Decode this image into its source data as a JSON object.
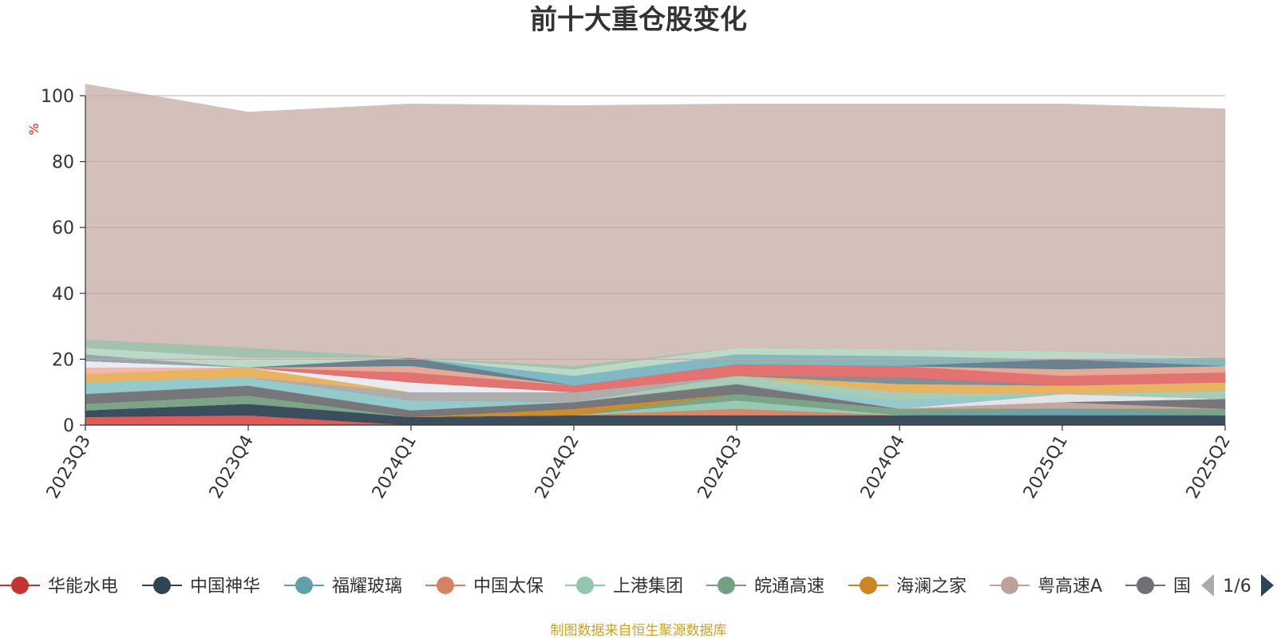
{
  "chart_data": {
    "type": "area",
    "stacked": true,
    "title": "前十大重仓股变化",
    "ylabel": "%",
    "ylim": [
      0,
      100
    ],
    "yticks": [
      0,
      20,
      40,
      60,
      80,
      100
    ],
    "categories": [
      "2023Q3",
      "2023Q4",
      "2024Q1",
      "2024Q2",
      "2024Q3",
      "2024Q4",
      "2025Q1",
      "2025Q2"
    ],
    "series": [
      {
        "name": "华能水电",
        "color": "#d9534f",
        "values": [
          2.5,
          3.0,
          0.0,
          0.0,
          0.0,
          0.0,
          0.0,
          0.0
        ]
      },
      {
        "name": "中国神华",
        "color": "#2f4554",
        "values": [
          2.0,
          3.5,
          2.5,
          3.0,
          3.0,
          3.0,
          3.0,
          3.0
        ]
      },
      {
        "name": "福耀玻璃",
        "color": "#61a0a8",
        "values": [
          0.0,
          0.0,
          0.0,
          0.0,
          0.0,
          0.0,
          2.0,
          0.0
        ]
      },
      {
        "name": "中国太保",
        "color": "#d48265",
        "values": [
          0.0,
          0.0,
          0.0,
          0.0,
          2.0,
          0.0,
          0.0,
          0.0
        ]
      },
      {
        "name": "上港集团",
        "color": "#91c7ae",
        "values": [
          0.0,
          0.0,
          0.0,
          0.0,
          2.5,
          0.0,
          0.0,
          0.0
        ]
      },
      {
        "name": "皖通高速",
        "color": "#749f83",
        "values": [
          2.0,
          2.5,
          0.0,
          0.0,
          2.0,
          2.0,
          0.0,
          2.0
        ]
      },
      {
        "name": "海澜之家",
        "color": "#ca8622",
        "values": [
          0.0,
          0.0,
          0.0,
          2.0,
          0.0,
          0.0,
          0.0,
          0.0
        ]
      },
      {
        "name": "粤高速A",
        "color": "#bda29a",
        "values": [
          0.0,
          0.0,
          0.0,
          0.0,
          0.0,
          0.0,
          2.0,
          0.0
        ]
      },
      {
        "name": "国",
        "color": "#6e7074",
        "values": [
          3.0,
          3.0,
          2.0,
          2.0,
          3.0,
          0.0,
          0.0,
          3.0
        ]
      },
      {
        "name": "",
        "color": "#e0e3e6",
        "values": [
          0.0,
          0.0,
          0.0,
          0.0,
          0.0,
          0.0,
          2.5,
          0.0
        ]
      },
      {
        "name": "",
        "color": "#d9534f",
        "values": [
          0.0,
          0.0,
          0.0,
          0.0,
          0.0,
          0.0,
          0.0,
          0.0
        ]
      },
      {
        "name": "",
        "color": "#8fc7c9",
        "values": [
          3.5,
          2.5,
          3.0,
          0.0,
          0.0,
          2.5,
          0.0,
          0.0
        ]
      },
      {
        "name": "",
        "color": "#a3c9b2",
        "values": [
          0.0,
          0.0,
          0.0,
          0.0,
          2.5,
          2.5,
          0.0,
          2.5
        ]
      },
      {
        "name": "",
        "color": "#a9a9a9",
        "values": [
          0.0,
          0.0,
          2.5,
          3.0,
          0.0,
          0.0,
          0.0,
          0.0
        ]
      },
      {
        "name": "",
        "color": "#e8b05a",
        "values": [
          2.5,
          3.0,
          0.0,
          0.0,
          0.0,
          2.5,
          2.5,
          2.5
        ]
      },
      {
        "name": "",
        "color": "#f0b4a8",
        "values": [
          2.0,
          0.0,
          0.0,
          0.0,
          0.0,
          0.0,
          0.0,
          0.0
        ]
      },
      {
        "name": "",
        "color": "#e9e9ef",
        "values": [
          2.0,
          0.0,
          3.0,
          0.0,
          0.0,
          0.0,
          0.0,
          0.0
        ]
      },
      {
        "name": "",
        "color": "#7d8a93",
        "values": [
          0.0,
          0.0,
          0.0,
          0.0,
          0.0,
          2.0,
          0.0,
          0.0
        ]
      },
      {
        "name": "",
        "color": "#e06b68",
        "values": [
          0.0,
          0.0,
          3.0,
          2.0,
          3.5,
          3.5,
          3.0,
          3.0
        ]
      },
      {
        "name": "",
        "color": "#8fa3ad",
        "values": [
          2.0,
          0.0,
          0.0,
          0.0,
          0.0,
          0.0,
          0.0,
          0.0
        ]
      },
      {
        "name": "",
        "color": "#e6a593",
        "values": [
          0.0,
          0.0,
          2.0,
          0.0,
          0.0,
          0.0,
          2.0,
          2.0
        ]
      },
      {
        "name": "",
        "color": "#607b8a",
        "values": [
          0.0,
          0.0,
          2.5,
          0.0,
          0.0,
          0.0,
          3.0,
          0.0
        ]
      },
      {
        "name": "",
        "color": "#79b5c0",
        "values": [
          0.0,
          0.0,
          0.0,
          3.0,
          3.0,
          3.0,
          0.0,
          2.5
        ]
      },
      {
        "name": "",
        "color": "#b7d7c4",
        "values": [
          2.0,
          3.0,
          0.0,
          2.0,
          2.0,
          2.0,
          2.5,
          0.0
        ]
      },
      {
        "name": "",
        "color": "#9ebfa9",
        "values": [
          2.5,
          3.0,
          0.0,
          1.0,
          0.0,
          0.0,
          0.0,
          0.0
        ]
      },
      {
        "name": "",
        "color": "#d1bdb7",
        "values": [
          77.5,
          71.5,
          77.0,
          79.0,
          74.0,
          74.5,
          75.0,
          75.5
        ]
      }
    ]
  },
  "legend": {
    "items": [
      {
        "name": "华能水电",
        "color": "#c23531"
      },
      {
        "name": "中国神华",
        "color": "#2f4554"
      },
      {
        "name": "福耀玻璃",
        "color": "#61a0a8"
      },
      {
        "name": "中国太保",
        "color": "#d48265"
      },
      {
        "name": "上港集团",
        "color": "#91c7ae"
      },
      {
        "name": "皖通高速",
        "color": "#749f83"
      },
      {
        "name": "海澜之家",
        "color": "#ca8622"
      },
      {
        "name": "粤高速A",
        "color": "#bda29a"
      },
      {
        "name": "国",
        "color": "#6e7074"
      }
    ],
    "page_indicator": "1/6"
  },
  "source_note": "制图数据来自恒生聚源数据库"
}
